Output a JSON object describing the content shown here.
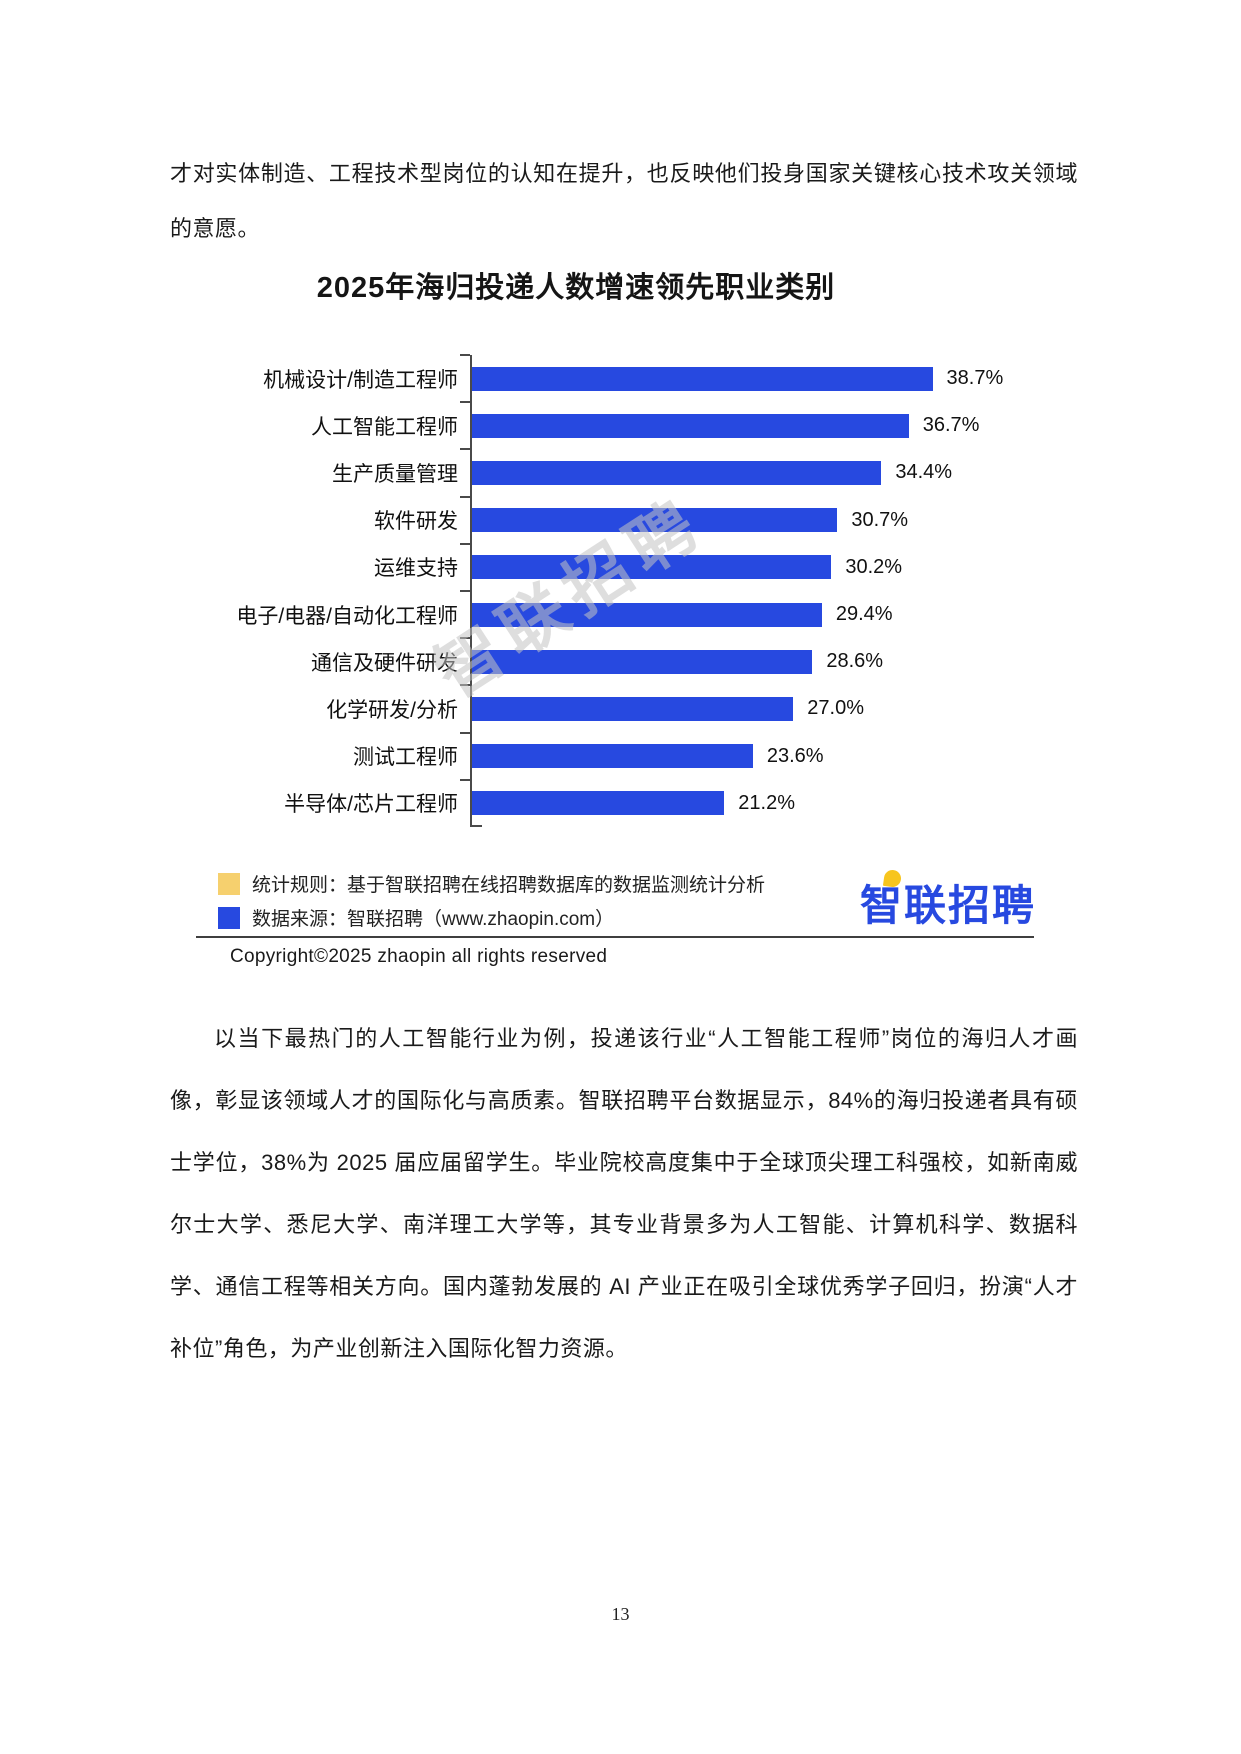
{
  "paragraph_top": "才对实体制造、工程技术型岗位的认知在提升，也反映他们投身国家关键核心技术攻关领域的意愿。",
  "paragraph_main": "以当下最热门的人工智能行业为例，投递该行业“人工智能工程师”岗位的海归人才画像，彰显该领域人才的国际化与高质素。智联招聘平台数据显示，84%的海归投递者具有硕士学位，38%为 2025 届应届留学生。毕业院校高度集中于全球顶尖理工科强校，如新南威尔士大学、悉尼大学、南洋理工大学等，其专业背景多为人工智能、计算机科学、数据科学、通信工程等相关方向。国内蓬勃发展的 AI 产业正在吸引全球优秀学子回归，扮演“人才补位”角色，为产业创新注入国际化智力资源。",
  "chart": {
    "title": "2025年海归投递人数增速领先职业类别",
    "watermark": "智联招聘",
    "bar_color": "#2749e0",
    "axis_color": "#4a4a4a",
    "legend": [
      {
        "color": "#f6d06e",
        "label": "统计规则：基于智联招聘在线招聘数据库的数据监测统计分析"
      },
      {
        "color": "#2749e0",
        "label": "数据来源：智联招聘（www.zhaopin.com）"
      }
    ],
    "copyright": "Copyright©2025 zhaopin all rights reserved",
    "logo_text": "智联招聘"
  },
  "chart_data": {
    "type": "bar",
    "orientation": "horizontal",
    "title": "2025年海归投递人数增速领先职业类别",
    "categories": [
      "机械设计/制造工程师",
      "人工智能工程师",
      "生产质量管理",
      "软件研发",
      "运维支持",
      "电子/电器/自动化工程师",
      "通信及硬件研发",
      "化学研发/分析",
      "测试工程师",
      "半导体/芯片工程师"
    ],
    "values": [
      38.7,
      36.7,
      34.4,
      30.7,
      30.2,
      29.4,
      28.6,
      27.0,
      23.6,
      21.2
    ],
    "value_labels": [
      "38.7%",
      "36.7%",
      "34.4%",
      "30.7%",
      "30.2%",
      "29.4%",
      "28.6%",
      "27.0%",
      "23.6%",
      "21.2%"
    ],
    "xlim": [
      0,
      40
    ],
    "grid": false,
    "legend_position": "none"
  },
  "page": {
    "number": "13"
  }
}
